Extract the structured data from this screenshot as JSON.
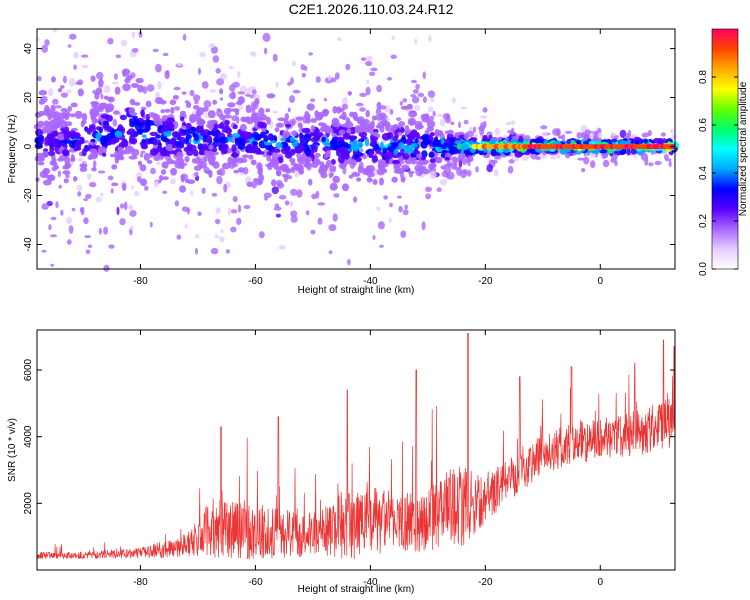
{
  "title": "C2E1.2026.110.03.24.R12",
  "colors": {
    "snr_line": "#ee3333",
    "colormap": [
      "#ffffff",
      "#e6ccff",
      "#aa66ff",
      "#5500ff",
      "#0000ff",
      "#00aaff",
      "#00ffff",
      "#00ff66",
      "#66ff00",
      "#ffff00",
      "#ffaa00",
      "#ff4400",
      "#ff0066"
    ]
  },
  "chart_data": [
    {
      "type": "heatmap",
      "title": "C2E1.2026.110.03.24.R12",
      "xlabel": "Height of straight line (km)",
      "ylabel": "Frequency (Hz)",
      "xlim": [
        -98,
        13
      ],
      "ylim": [
        -50,
        48
      ],
      "xticks": [
        -80,
        -60,
        -40,
        -20,
        0
      ],
      "yticks": [
        -40,
        -20,
        0,
        20,
        40
      ],
      "colorbar": {
        "label": "Normalized spectral amplitude",
        "range": [
          0,
          1
        ],
        "ticks": [
          0.0,
          0.2,
          0.4,
          0.6,
          0.8
        ],
        "tick_labels": [
          "0.0",
          "0.2",
          "0.4",
          "0.6",
          "0.8"
        ]
      },
      "ridge": [
        {
          "x": -98,
          "center_hz": 2,
          "spread_hz": 16,
          "peak": 0.35
        },
        {
          "x": -90,
          "center_hz": 3,
          "spread_hz": 18,
          "peak": 0.4
        },
        {
          "x": -82,
          "center_hz": 8,
          "spread_hz": 20,
          "peak": 0.45
        },
        {
          "x": -76,
          "center_hz": 4,
          "spread_hz": 16,
          "peak": 0.45
        },
        {
          "x": -70,
          "center_hz": 3,
          "spread_hz": 15,
          "peak": 0.45
        },
        {
          "x": -60,
          "center_hz": 2,
          "spread_hz": 15,
          "peak": 0.45
        },
        {
          "x": -50,
          "center_hz": 1,
          "spread_hz": 14,
          "peak": 0.45
        },
        {
          "x": -40,
          "center_hz": 0,
          "spread_hz": 14,
          "peak": 0.45
        },
        {
          "x": -30,
          "center_hz": 0,
          "spread_hz": 10,
          "peak": 0.5
        },
        {
          "x": -25,
          "center_hz": 0,
          "spread_hz": 6,
          "peak": 0.6
        },
        {
          "x": -20,
          "center_hz": 0,
          "spread_hz": 3,
          "peak": 0.85
        },
        {
          "x": -10,
          "center_hz": 0,
          "spread_hz": 2,
          "peak": 0.95
        },
        {
          "x": 0,
          "center_hz": 0,
          "spread_hz": 2,
          "peak": 0.95
        },
        {
          "x": 13,
          "center_hz": 0,
          "spread_hz": 2,
          "peak": 0.95
        }
      ]
    },
    {
      "type": "line",
      "xlabel": "Height of straight line (km)",
      "ylabel": "SNR (10 * v/v)",
      "xlim": [
        -98,
        13
      ],
      "ylim": [
        0,
        7200
      ],
      "xticks": [
        -80,
        -60,
        -40,
        -20,
        0
      ],
      "yticks": [
        2000,
        4000,
        6000
      ],
      "envelope": {
        "x": [
          -98,
          -90,
          -80,
          -74,
          -70,
          -68,
          -60,
          -50,
          -44,
          -40,
          -35,
          -30,
          -26,
          -24,
          -20,
          -16,
          -10,
          -5,
          0,
          5,
          10,
          13
        ],
        "base": [
          400,
          400,
          450,
          550,
          700,
          900,
          800,
          800,
          900,
          1000,
          1100,
          1100,
          1500,
          1400,
          1800,
          2500,
          3200,
          3500,
          3700,
          3800,
          4000,
          4100
        ],
        "spread": [
          200,
          200,
          300,
          600,
          900,
          1800,
          1600,
          1300,
          2000,
          2200,
          1700,
          1900,
          2200,
          2500,
          1300,
          1400,
          1200,
          1300,
          1200,
          1300,
          1500,
          1600
        ]
      },
      "peaks": [
        {
          "x": -66,
          "y": 4300
        },
        {
          "x": -56,
          "y": 4600
        },
        {
          "x": -44,
          "y": 5400
        },
        {
          "x": -32,
          "y": 6000
        },
        {
          "x": -23,
          "y": 7100
        },
        {
          "x": -14,
          "y": 5800
        },
        {
          "x": -5,
          "y": 6100
        },
        {
          "x": 6,
          "y": 6200
        },
        {
          "x": 11,
          "y": 6900
        },
        {
          "x": 13,
          "y": 6700
        }
      ]
    }
  ]
}
